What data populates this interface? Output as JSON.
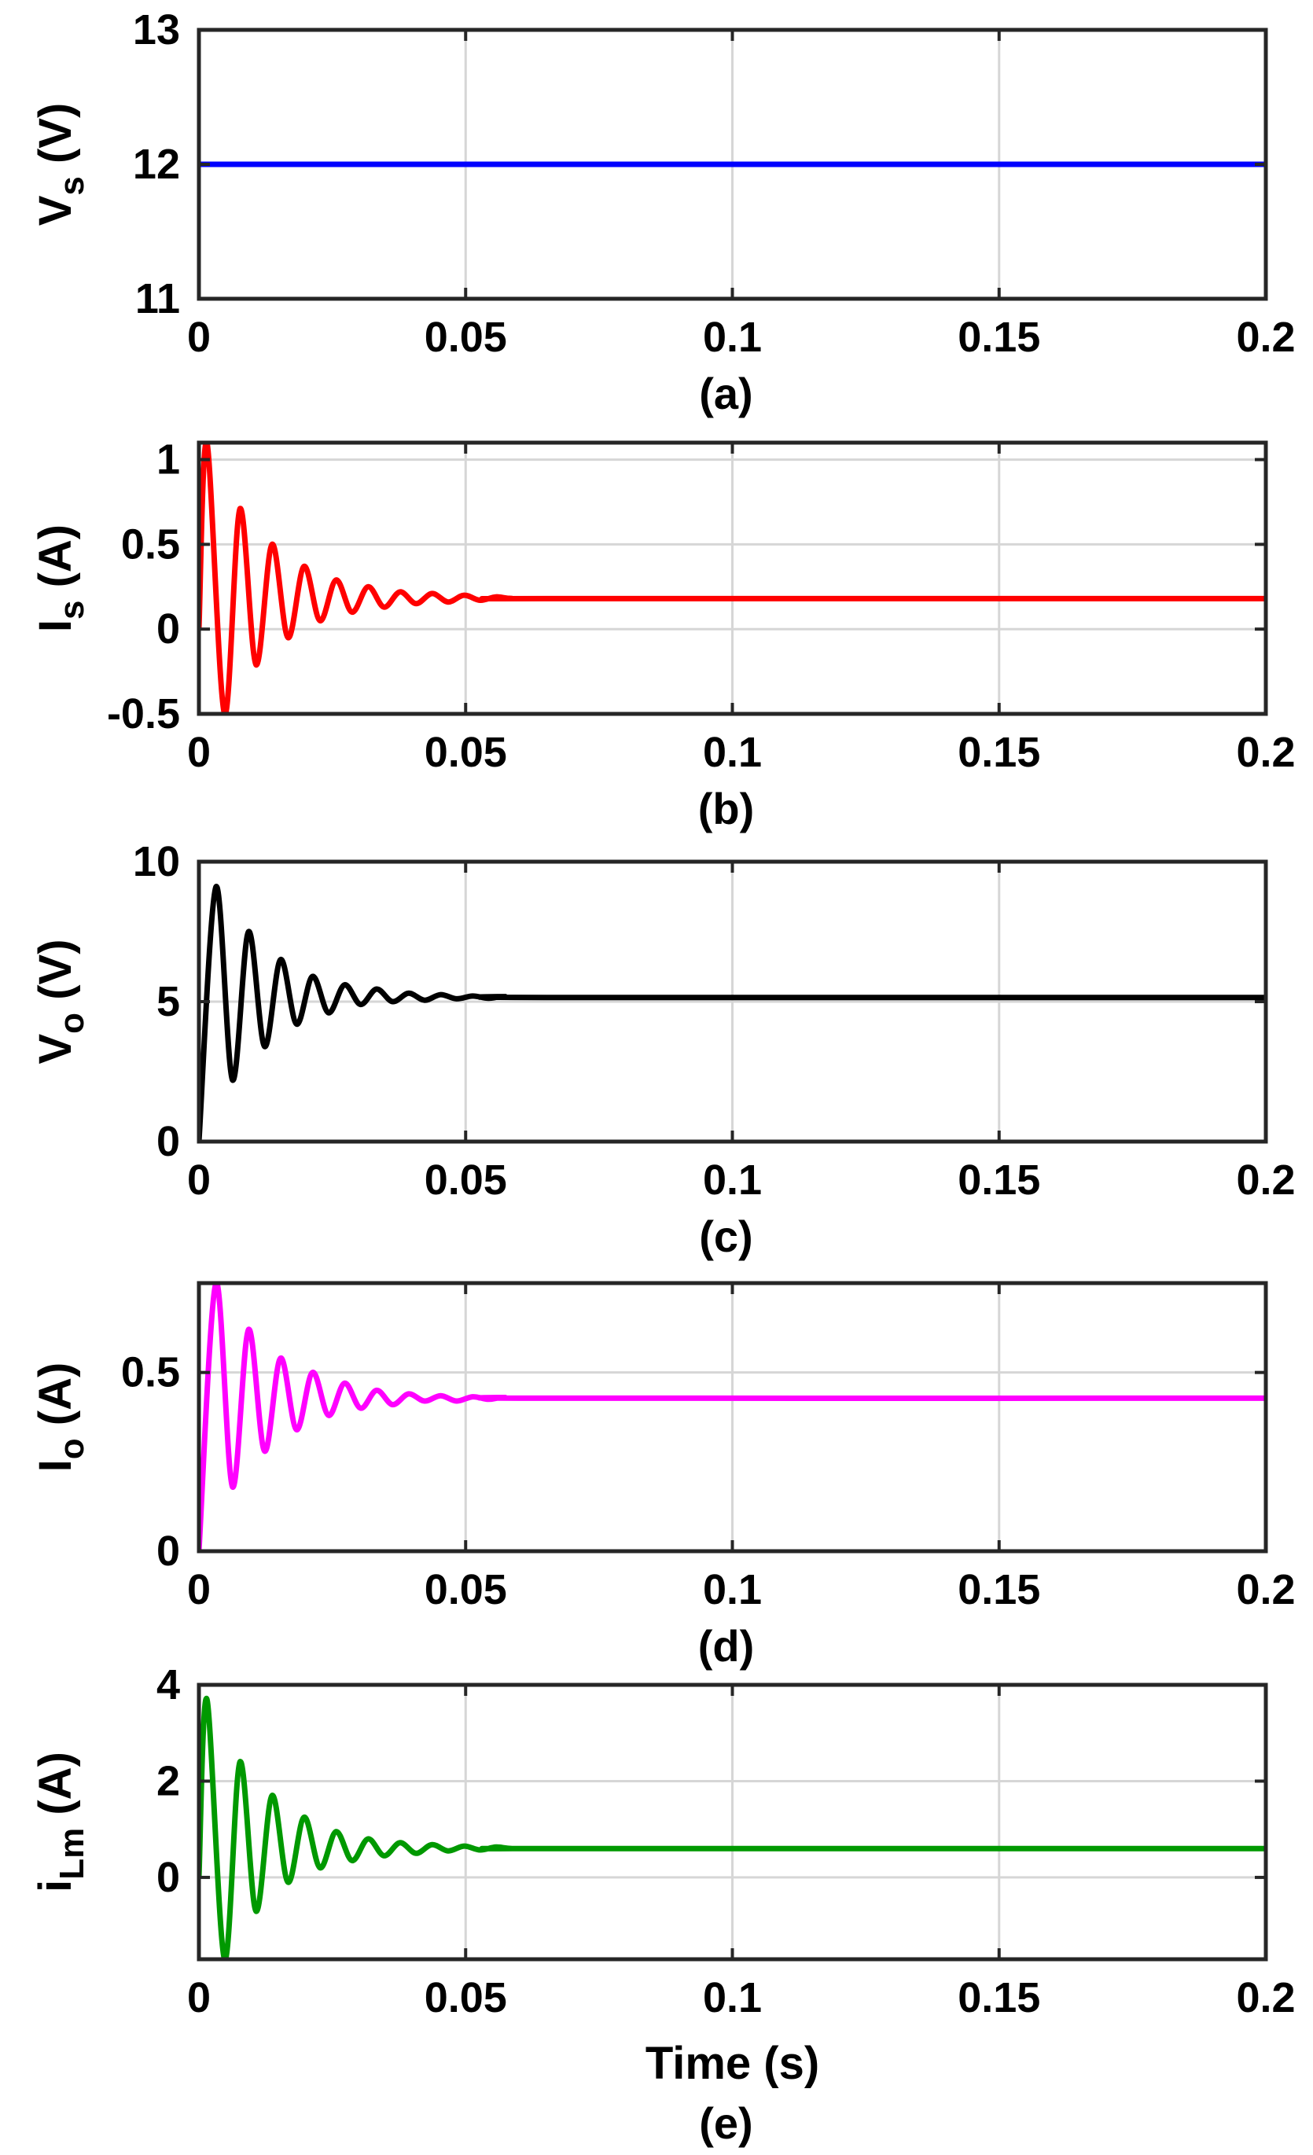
{
  "chart_data": [
    {
      "type": "line",
      "caption": "(a)",
      "ylabel": {
        "main": "V",
        "sub": "s",
        "unit": " (V)"
      },
      "xlabel": "",
      "xlim": [
        0,
        0.2
      ],
      "ylim": [
        11,
        13
      ],
      "xticks": [
        0,
        0.05,
        0.1,
        0.15,
        0.2
      ],
      "xtick_labels": [
        "0",
        "0.05",
        "0.1",
        "0.15",
        "0.2"
      ],
      "yticks": [
        11,
        12,
        13
      ],
      "ytick_labels": [
        "11",
        "12",
        "13"
      ],
      "grid": true,
      "series": [
        {
          "color": "#0000ff",
          "x": [
            0,
            0.2
          ],
          "y": [
            12,
            12
          ]
        }
      ]
    },
    {
      "type": "line",
      "caption": "(b)",
      "ylabel": {
        "main": "I",
        "sub": "s",
        "unit": " (A)"
      },
      "xlabel": "",
      "xlim": [
        0,
        0.2
      ],
      "ylim": [
        -0.5,
        1.1
      ],
      "xticks": [
        0,
        0.05,
        0.1,
        0.15,
        0.2
      ],
      "xtick_labels": [
        "0",
        "0.05",
        "0.1",
        "0.15",
        "0.2"
      ],
      "yticks": [
        -0.5,
        0,
        0.5,
        1
      ],
      "ytick_labels": [
        "-0.5",
        "0",
        "0.5",
        "1"
      ],
      "grid": true,
      "series": [
        {
          "color": "#ff0000",
          "x": [
            0,
            0.0015,
            0.0048,
            0.0077,
            0.0107,
            0.0137,
            0.0167,
            0.0197,
            0.0227,
            0.0257,
            0.0287,
            0.0317,
            0.0347,
            0.0377,
            0.0407,
            0.0437,
            0.0467,
            0.0497,
            0.0527,
            0.0557,
            0.0587,
            0.065,
            0.2
          ],
          "y": [
            0,
            1.1,
            -0.5,
            0.71,
            -0.21,
            0.5,
            -0.05,
            0.37,
            0.05,
            0.29,
            0.1,
            0.25,
            0.13,
            0.22,
            0.15,
            0.21,
            0.16,
            0.2,
            0.17,
            0.19,
            0.18,
            0.18,
            0.18
          ]
        }
      ]
    },
    {
      "type": "line",
      "caption": "(c)",
      "ylabel": {
        "main": "V",
        "sub": "o",
        "unit": " (V)"
      },
      "xlabel": "",
      "xlim": [
        0,
        0.2
      ],
      "ylim": [
        0,
        10
      ],
      "xticks": [
        0,
        0.05,
        0.1,
        0.15,
        0.2
      ],
      "xtick_labels": [
        "0",
        "0.05",
        "0.1",
        "0.15",
        "0.2"
      ],
      "yticks": [
        0,
        5,
        10
      ],
      "ytick_labels": [
        "0",
        "5",
        "10"
      ],
      "grid": true,
      "series": [
        {
          "color": "#000000",
          "x": [
            0,
            0.0032,
            0.0063,
            0.0093,
            0.0123,
            0.0153,
            0.0183,
            0.0213,
            0.0243,
            0.0273,
            0.0303,
            0.0333,
            0.0363,
            0.0393,
            0.0423,
            0.0453,
            0.0483,
            0.0513,
            0.0543,
            0.0573,
            0.065,
            0.2
          ],
          "y": [
            0,
            9.1,
            2.2,
            7.5,
            3.4,
            6.5,
            4.2,
            5.9,
            4.6,
            5.6,
            4.9,
            5.45,
            5.0,
            5.3,
            5.05,
            5.25,
            5.1,
            5.2,
            5.12,
            5.18,
            5.15,
            5.15
          ]
        }
      ]
    },
    {
      "type": "line",
      "caption": "(d)",
      "ylabel": {
        "main": "I",
        "sub": "o",
        "unit": " (A)"
      },
      "xlabel": "",
      "xlim": [
        0,
        0.2
      ],
      "ylim": [
        0,
        0.75
      ],
      "xticks": [
        0,
        0.05,
        0.1,
        0.15,
        0.2
      ],
      "xtick_labels": [
        "0",
        "0.05",
        "0.1",
        "0.15",
        "0.2"
      ],
      "yticks": [
        0,
        0.5
      ],
      "ytick_labels": [
        "0",
        "0.5"
      ],
      "grid": true,
      "series": [
        {
          "color": "#ff00ff",
          "x": [
            0,
            0.0032,
            0.0063,
            0.0093,
            0.0123,
            0.0153,
            0.0183,
            0.0213,
            0.0243,
            0.0273,
            0.0303,
            0.0333,
            0.0363,
            0.0393,
            0.0423,
            0.0453,
            0.0483,
            0.0513,
            0.0543,
            0.0573,
            0.065,
            0.2
          ],
          "y": [
            0,
            0.75,
            0.18,
            0.62,
            0.28,
            0.54,
            0.34,
            0.5,
            0.38,
            0.47,
            0.4,
            0.45,
            0.41,
            0.44,
            0.42,
            0.435,
            0.42,
            0.432,
            0.425,
            0.43,
            0.428,
            0.428
          ]
        }
      ]
    },
    {
      "type": "line",
      "caption": "(e)",
      "ylabel": {
        "main": "i",
        "sub": "Lm",
        "unit": " (A)"
      },
      "xlabel": "Time (s)",
      "xlim": [
        0,
        0.2
      ],
      "ylim": [
        -1.7,
        4
      ],
      "xticks": [
        0,
        0.05,
        0.1,
        0.15,
        0.2
      ],
      "xtick_labels": [
        "0",
        "0.05",
        "0.1",
        "0.15",
        "0.2"
      ],
      "yticks": [
        0,
        2,
        4
      ],
      "ytick_labels": [
        "0",
        "2",
        "4"
      ],
      "grid": true,
      "series": [
        {
          "color": "#009900",
          "x": [
            0,
            0.0015,
            0.0048,
            0.0077,
            0.0107,
            0.0137,
            0.0167,
            0.0197,
            0.0227,
            0.0257,
            0.0287,
            0.0317,
            0.0347,
            0.0377,
            0.0407,
            0.0437,
            0.0467,
            0.0497,
            0.0527,
            0.0557,
            0.0587,
            0.065,
            0.2
          ],
          "y": [
            0,
            3.7,
            -1.7,
            2.4,
            -0.7,
            1.7,
            -0.1,
            1.25,
            0.2,
            0.95,
            0.35,
            0.8,
            0.45,
            0.72,
            0.5,
            0.68,
            0.55,
            0.65,
            0.57,
            0.63,
            0.6,
            0.6,
            0.6
          ]
        }
      ]
    }
  ]
}
